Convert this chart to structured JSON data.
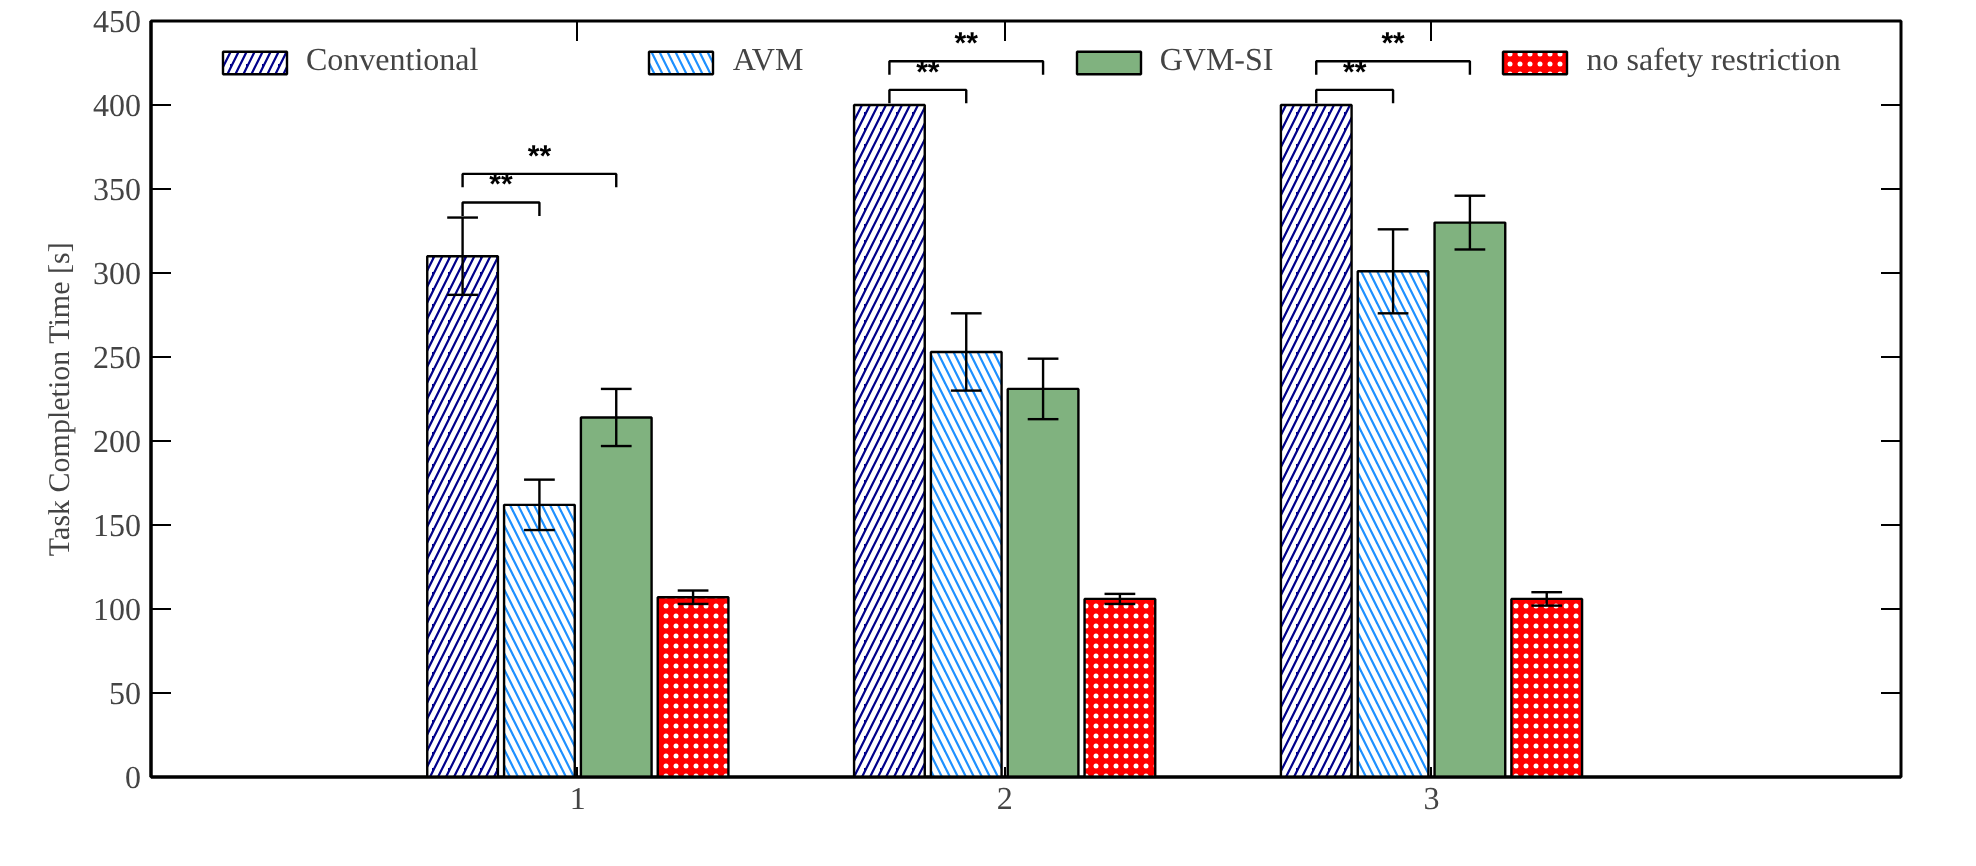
{
  "chart_data": {
    "type": "bar",
    "ylabel": "Task Completion Time [s]",
    "categories": [
      "1",
      "2",
      "3"
    ],
    "ylim": [
      0,
      450
    ],
    "yticks": [
      0,
      50,
      100,
      150,
      200,
      250,
      300,
      350,
      400,
      450
    ],
    "legend": "top",
    "grid": false,
    "series": [
      {
        "name": "Conventional",
        "color": "#00008b",
        "values": [
          310,
          400,
          400
        ],
        "errors": [
          23,
          null,
          null
        ]
      },
      {
        "name": "AVM",
        "color": "#1e90ff",
        "values": [
          162,
          253,
          301
        ],
        "errors": [
          15,
          23,
          25
        ]
      },
      {
        "name": "GVM-SI",
        "color": "#80b27f",
        "values": [
          214,
          231,
          330
        ],
        "errors": [
          17,
          18,
          16
        ]
      },
      {
        "name": "no safety restriction",
        "color": "#ff0000",
        "values": [
          107,
          106,
          106
        ],
        "errors": [
          4,
          3,
          4
        ]
      }
    ],
    "annotations": [
      "**",
      "**",
      "**",
      "**",
      "**",
      "**"
    ]
  }
}
